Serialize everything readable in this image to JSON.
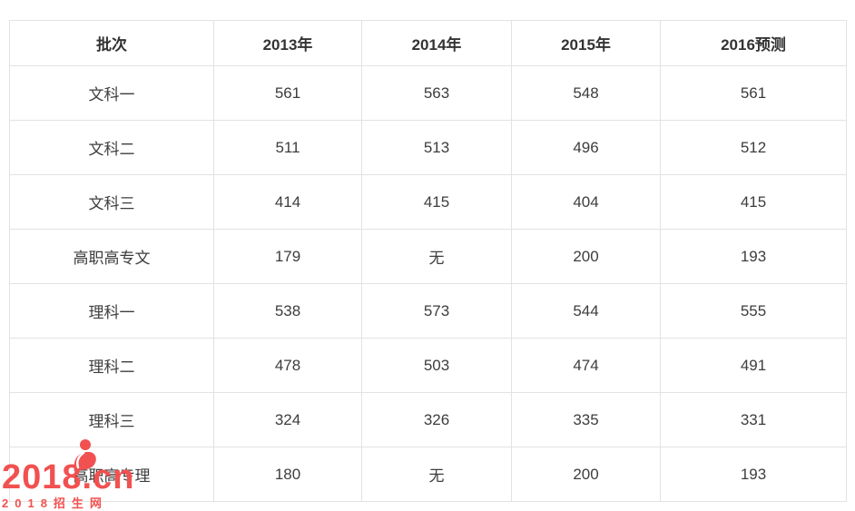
{
  "table": {
    "columns": [
      "批次",
      "2013年",
      "2014年",
      "2015年",
      "2016预测"
    ],
    "rows": [
      {
        "label": "文科一",
        "values": [
          "561",
          "563",
          "548",
          "561"
        ]
      },
      {
        "label": "文科二",
        "values": [
          "511",
          "513",
          "496",
          "512"
        ]
      },
      {
        "label": "文科三",
        "values": [
          "414",
          "415",
          "404",
          "415"
        ]
      },
      {
        "label": "高职高专文",
        "values": [
          "179",
          "无",
          "200",
          "193"
        ]
      },
      {
        "label": "理科一",
        "values": [
          "538",
          "573",
          "544",
          "555"
        ]
      },
      {
        "label": "理科二",
        "values": [
          "478",
          "503",
          "474",
          "491"
        ]
      },
      {
        "label": "理科三",
        "values": [
          "324",
          "326",
          "335",
          "331"
        ]
      },
      {
        "label": "高职高专理",
        "values": [
          "180",
          "无",
          "200",
          "193"
        ]
      }
    ]
  },
  "watermark": {
    "logo_text": "2018.cn",
    "subtitle": "2018招生网",
    "color": "#f15150"
  },
  "colors": {
    "background": "#ffffff",
    "border": "#e2e2e2",
    "header_text": "#333333",
    "cell_text": "#3d3d3d"
  }
}
